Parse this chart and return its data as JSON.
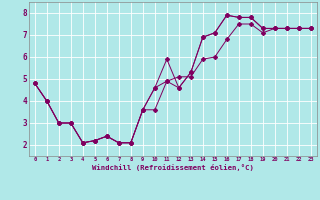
{
  "xlabel": "Windchill (Refroidissement éolien,°C)",
  "bg_color": "#b0e8e8",
  "line_color": "#800060",
  "grid_color": "#ffffff",
  "xlim": [
    -0.5,
    23.5
  ],
  "ylim": [
    1.5,
    8.5
  ],
  "xticks": [
    0,
    1,
    2,
    3,
    4,
    5,
    6,
    7,
    8,
    9,
    10,
    11,
    12,
    13,
    14,
    15,
    16,
    17,
    18,
    19,
    20,
    21,
    22,
    23
  ],
  "yticks": [
    2,
    3,
    4,
    5,
    6,
    7,
    8
  ],
  "series": [
    [
      4.8,
      4.0,
      3.0,
      3.0,
      2.1,
      2.2,
      2.4,
      2.1,
      2.1,
      3.6,
      4.6,
      5.9,
      4.6,
      5.3,
      6.9,
      7.1,
      7.9,
      7.8,
      7.8,
      7.3,
      7.3,
      7.3,
      7.3,
      7.3
    ],
    [
      4.8,
      4.0,
      3.0,
      3.0,
      2.1,
      2.2,
      2.4,
      2.1,
      2.1,
      3.6,
      4.6,
      4.9,
      4.6,
      5.3,
      6.9,
      7.1,
      7.9,
      7.8,
      7.8,
      7.3,
      7.3,
      7.3,
      7.3,
      7.3
    ],
    [
      4.8,
      4.0,
      3.0,
      3.0,
      2.1,
      2.2,
      2.4,
      2.1,
      2.1,
      3.6,
      3.6,
      4.9,
      5.1,
      5.1,
      5.9,
      6.0,
      6.8,
      7.5,
      7.5,
      7.1,
      7.3,
      7.3,
      7.3,
      7.3
    ]
  ]
}
